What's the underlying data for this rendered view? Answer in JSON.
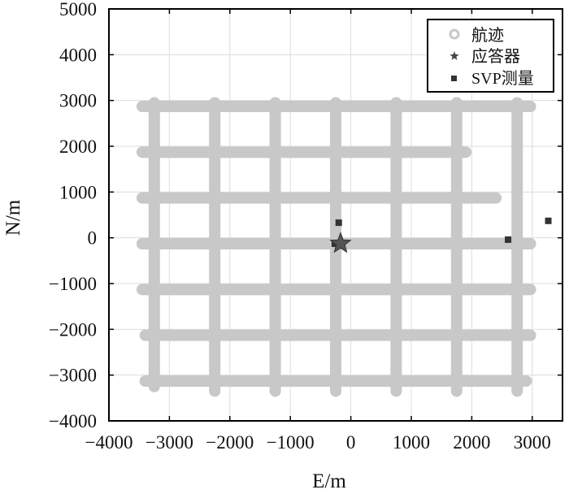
{
  "chart_data": {
    "type": "scatter",
    "title": "",
    "xlabel": "E/m",
    "ylabel": "N/m",
    "xlim": [
      -4000,
      3500
    ],
    "ylim": [
      -4000,
      5000
    ],
    "xticks": [
      -4000,
      -3000,
      -2000,
      -1000,
      0,
      1000,
      2000,
      3000
    ],
    "xtick_labels": [
      "−4000",
      "−3000",
      "−2000",
      "−1000",
      "0",
      "1000",
      "2000",
      "3000"
    ],
    "yticks": [
      5000,
      4000,
      3000,
      2000,
      1000,
      0,
      -1000,
      -2000,
      -3000,
      -4000
    ],
    "ytick_labels": [
      "5000",
      "4000",
      "3000",
      "2000",
      "1000",
      "0",
      "−1000",
      "−2000",
      "−3000",
      "−4000"
    ],
    "grid": true,
    "legend_position": "top-right",
    "colors": {
      "track": "#c8c8c8",
      "transponder": "#555555",
      "svp": "#333333",
      "grid": "#dcdcdc"
    },
    "series": [
      {
        "name": "航迹",
        "marker": "circle",
        "segments": [
          [
            [
              -3450,
              2870
            ],
            [
              2970,
              2870
            ]
          ],
          [
            [
              -3450,
              1870
            ],
            [
              1900,
              1870
            ]
          ],
          [
            [
              -3450,
              870
            ],
            [
              2400,
              870
            ]
          ],
          [
            [
              -3450,
              -130
            ],
            [
              2970,
              -130
            ]
          ],
          [
            [
              -3450,
              -1130
            ],
            [
              2970,
              -1130
            ]
          ],
          [
            [
              -3400,
              -2130
            ],
            [
              2970,
              -2130
            ]
          ],
          [
            [
              -3400,
              -3130
            ],
            [
              1350,
              -3130
            ]
          ],
          [
            [
              1400,
              -3130
            ],
            [
              2900,
              -3130
            ]
          ],
          [
            [
              -3250,
              2950
            ],
            [
              -3250,
              -3250
            ]
          ],
          [
            [
              -2250,
              2950
            ],
            [
              -2250,
              -3350
            ]
          ],
          [
            [
              -1250,
              2950
            ],
            [
              -1250,
              -3350
            ]
          ],
          [
            [
              -250,
              2950
            ],
            [
              -250,
              -3350
            ]
          ],
          [
            [
              750,
              2950
            ],
            [
              750,
              -3350
            ]
          ],
          [
            [
              1750,
              2950
            ],
            [
              1750,
              -3350
            ]
          ],
          [
            [
              2750,
              2950
            ],
            [
              2750,
              -3350
            ]
          ]
        ]
      },
      {
        "name": "应答器",
        "marker": "star",
        "points": [
          [
            -170,
            -125
          ]
        ]
      },
      {
        "name": "SVP测量",
        "marker": "square",
        "points": [
          [
            -200,
            330
          ],
          [
            -265,
            -130
          ],
          [
            2600,
            -40
          ],
          [
            3265,
            370
          ]
        ]
      }
    ]
  }
}
